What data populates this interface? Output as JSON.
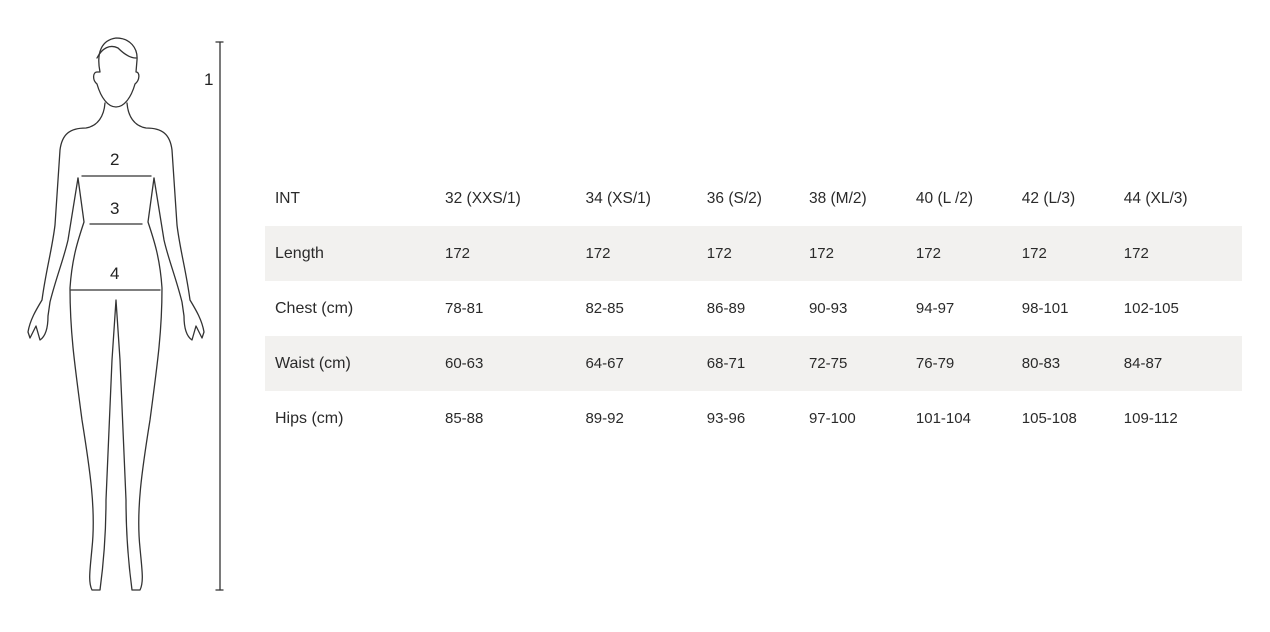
{
  "figure": {
    "labels": [
      "1",
      "2",
      "3",
      "4"
    ]
  },
  "table": {
    "header": [
      "INT",
      "32 (XXS/1)",
      "34 (XS/1)",
      "36 (S/2)",
      "38 (M/2)",
      "40 (L /2)",
      "42 (L/3)",
      "44 (XL/3)"
    ],
    "rows": [
      [
        "Length",
        "172",
        "172",
        "172",
        "172",
        "172",
        "172",
        "172"
      ],
      [
        "Chest (cm)",
        "78-81",
        "82-85",
        "86-89",
        "90-93",
        "94-97",
        "98-101",
        "102-105"
      ],
      [
        "Waist (cm)",
        "60-63",
        "64-67",
        "68-71",
        "72-75",
        "76-79",
        "80-83",
        "84-87"
      ],
      [
        "Hips (cm)",
        "85-88",
        "89-92",
        "93-96",
        "97-100",
        "101-104",
        "105-108",
        "109-112"
      ]
    ]
  },
  "colors": {
    "stripe": "#f2f1ef",
    "line": "#333333"
  }
}
